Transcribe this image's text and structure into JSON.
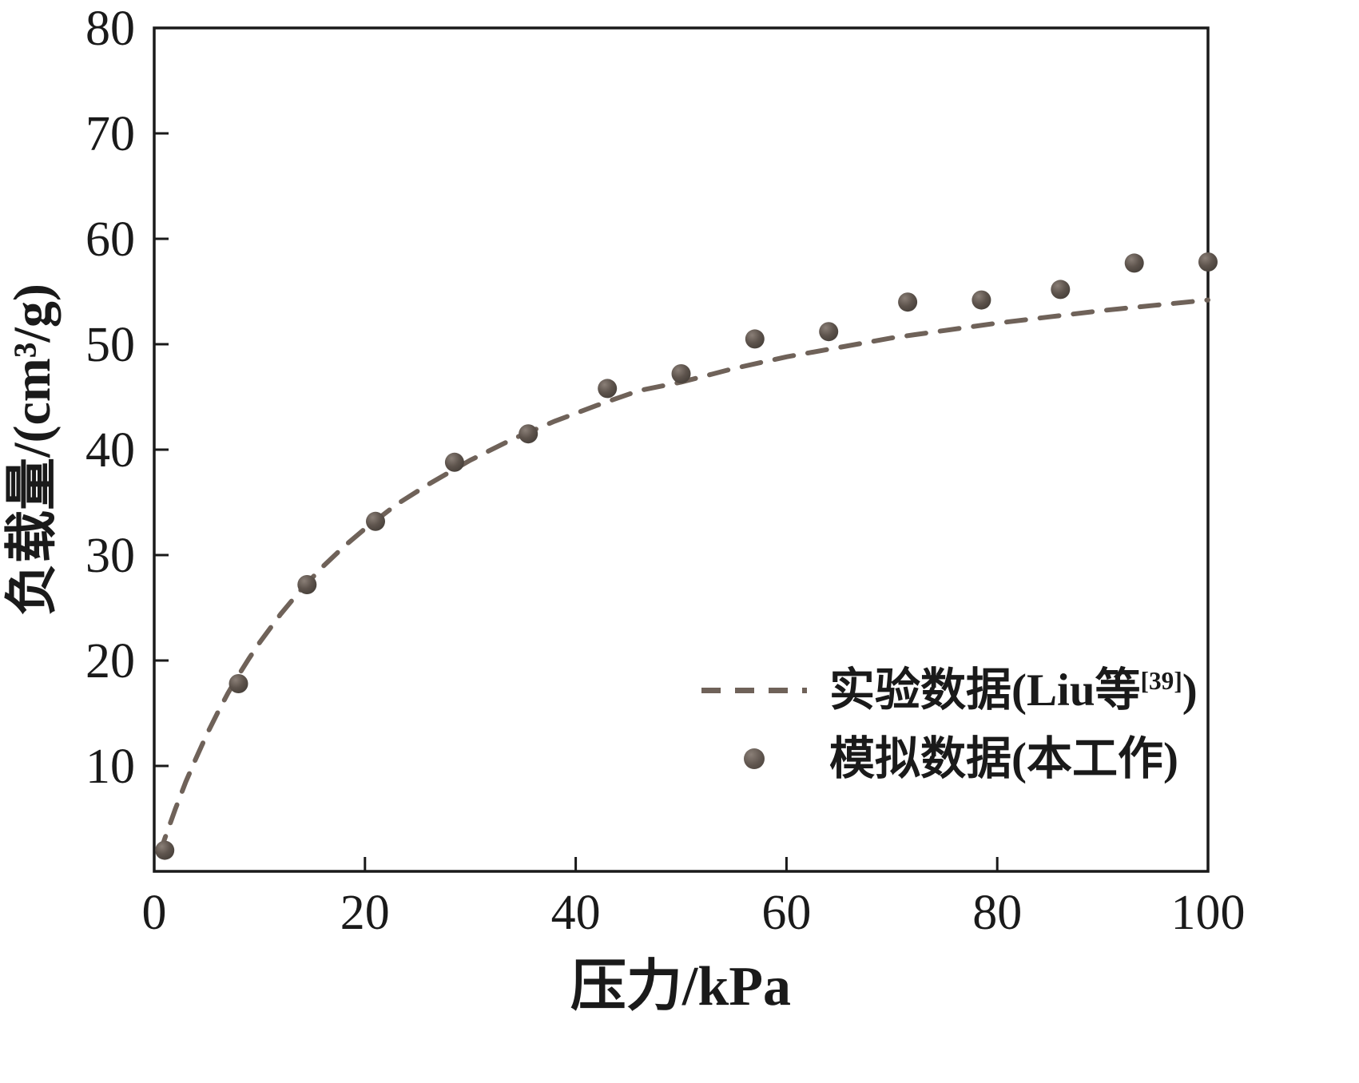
{
  "chart_data": {
    "type": "line+scatter",
    "title": "",
    "xlabel": "压力/kPa",
    "ylabel": "负载量/(cm³/g)",
    "xlim": [
      0,
      100
    ],
    "ylim": [
      0,
      80
    ],
    "xticks": [
      0,
      20,
      40,
      60,
      80,
      100
    ],
    "yticks": [
      10,
      20,
      30,
      40,
      50,
      60,
      70,
      80
    ],
    "grid": false,
    "legend_position": "inside lower right",
    "series": [
      {
        "name": "实验数据(Liu等[39])",
        "type": "dashed-line",
        "color": "#6f6259",
        "x": [
          0.5,
          1,
          1.5,
          2,
          2.5,
          3,
          4,
          5,
          6,
          7,
          8,
          9,
          10,
          12,
          14,
          16,
          18,
          20,
          23,
          26,
          30,
          34,
          38,
          42,
          46,
          50,
          55,
          60,
          65,
          70,
          75,
          80,
          85,
          90,
          95,
          100
        ],
        "y": [
          1.6,
          3.1,
          4.5,
          5.9,
          7.2,
          8.5,
          10.8,
          13.0,
          15.0,
          16.9,
          18.6,
          20.2,
          21.7,
          24.4,
          26.8,
          28.9,
          30.8,
          32.5,
          34.8,
          36.7,
          39.0,
          41.0,
          42.7,
          44.2,
          45.6,
          46.4,
          47.7,
          48.8,
          49.7,
          50.6,
          51.3,
          52.0,
          52.6,
          53.2,
          53.7,
          54.2
        ]
      },
      {
        "name": "模拟数据(本工作)",
        "type": "scatter",
        "color": "#5e544d",
        "x": [
          1,
          8,
          14.5,
          21,
          28.5,
          35.5,
          43,
          50,
          57,
          64,
          71.5,
          78.5,
          86,
          93,
          100
        ],
        "y": [
          2.0,
          17.8,
          27.2,
          33.2,
          38.8,
          41.5,
          45.8,
          47.2,
          50.5,
          51.2,
          54.0,
          54.2,
          55.2,
          57.7,
          57.8
        ]
      }
    ]
  },
  "legend": {
    "exp_pre": "实验数据(Liu等",
    "exp_sup": "[39]",
    "exp_post": ")",
    "sim_label": "模拟数据(本工作)"
  },
  "axes": {
    "x_tick_labels": [
      "0",
      "20",
      "40",
      "60",
      "80",
      "100"
    ],
    "y_tick_labels": [
      "10",
      "20",
      "30",
      "40",
      "50",
      "60",
      "70",
      "80"
    ]
  }
}
